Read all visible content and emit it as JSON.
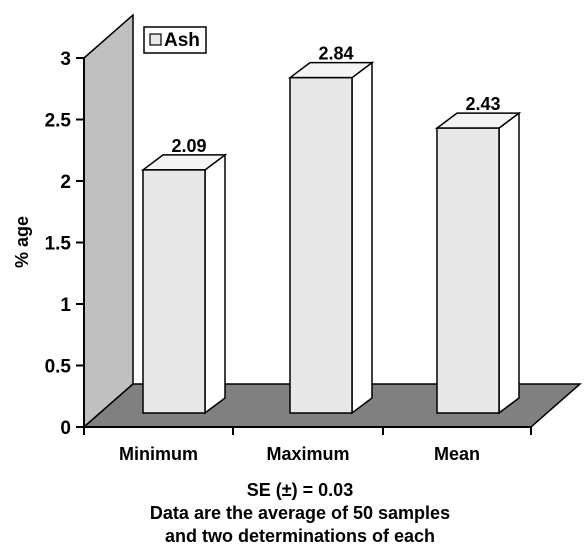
{
  "chart_data": {
    "type": "bar",
    "categories": [
      "Minimum",
      "Maximum",
      "Mean"
    ],
    "series": [
      {
        "name": "Ash",
        "values": [
          2.09,
          2.84,
          2.43
        ],
        "color": "#e8e8e8"
      }
    ],
    "data_labels": [
      "2.09",
      "2.84",
      "2.43"
    ],
    "ylabel": "% age",
    "ylim": [
      0,
      3
    ],
    "yticks": [
      0,
      0.5,
      1,
      1.5,
      2,
      2.5,
      3
    ],
    "ytick_labels": [
      "0",
      "0.5",
      "1",
      "1.5",
      "2",
      "2.5",
      "3"
    ],
    "legend": {
      "position": "top-left",
      "labels": [
        "Ash"
      ]
    },
    "notes": [
      "SE (±) = 0.03",
      "Data are the average of 50 samples",
      "and two determinations of each"
    ],
    "style": "3d",
    "colors": {
      "wall": "#c0c0c0",
      "floor": "#808080",
      "bar_front": "#e8e8e8",
      "bar_top": "#f4f4f4",
      "bar_side": "#ffffff"
    }
  }
}
